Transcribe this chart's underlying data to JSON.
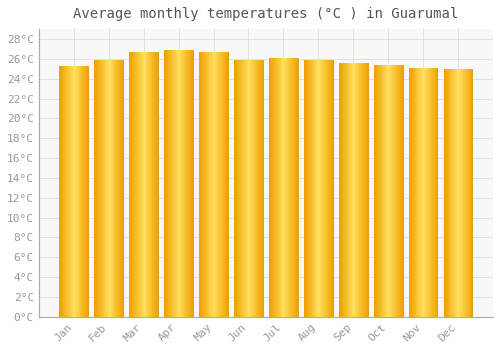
{
  "title": "Average monthly temperatures (°C ) in Guarumal",
  "months": [
    "Jan",
    "Feb",
    "Mar",
    "Apr",
    "May",
    "Jun",
    "Jul",
    "Aug",
    "Sep",
    "Oct",
    "Nov",
    "Dec"
  ],
  "values": [
    25.3,
    25.9,
    26.7,
    26.9,
    26.7,
    25.9,
    26.1,
    25.9,
    25.6,
    25.4,
    25.1,
    25.0
  ],
  "ylim": [
    0,
    29
  ],
  "yticks": [
    0,
    2,
    4,
    6,
    8,
    10,
    12,
    14,
    16,
    18,
    20,
    22,
    24,
    26,
    28
  ],
  "bar_color_center": "#FFE060",
  "bar_color_edge": "#F0A000",
  "bar_edge_color": "#D09000",
  "background_color": "#FFFFFF",
  "plot_bg_color": "#F8F8F8",
  "grid_color": "#DDDDDD",
  "title_fontsize": 10,
  "tick_fontsize": 8,
  "tick_color": "#999999"
}
